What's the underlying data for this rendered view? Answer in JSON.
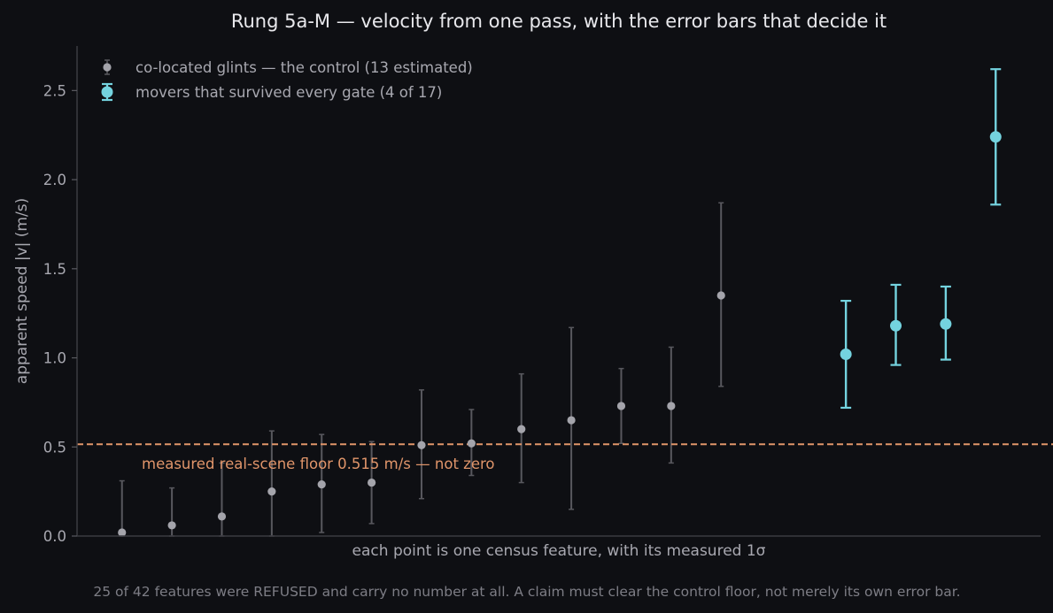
{
  "chart_data": {
    "type": "scatter",
    "title": "Rung 5a-M — velocity from one pass, with the error bars that decide it",
    "xlabel": "each point is one census feature, with its measured 1σ",
    "ylabel": "apparent speed  |v|  (m/s)",
    "footnote": "25 of 42 features were REFUSED and carry no number at all.  A claim must clear the control floor, not merely its own error bar.",
    "xlim": [
      0.1,
      19.4
    ],
    "ylim": [
      0,
      2.75
    ],
    "yticks": [
      0.0,
      0.5,
      1.0,
      1.5,
      2.0,
      2.5
    ],
    "ytick_labels": [
      "0.0",
      "0.5",
      "1.0",
      "1.5",
      "2.0",
      "2.5"
    ],
    "grid": false,
    "legend_position": "top-left",
    "floor": {
      "value": 0.515,
      "label": "measured real-scene floor 0.515 m/s — not zero",
      "color": "#e0956a"
    },
    "series": [
      {
        "name": "co-located glints — the control (13 estimated)",
        "color": "#a4a4ab",
        "errcolor": "#58585e",
        "x": [
          1,
          2,
          3,
          4,
          5,
          6,
          7,
          8,
          9,
          10,
          11,
          12,
          13
        ],
        "y": [
          0.02,
          0.06,
          0.11,
          0.25,
          0.29,
          0.3,
          0.51,
          0.52,
          0.6,
          0.65,
          0.73,
          0.73,
          1.35
        ],
        "yerr_low": [
          0.0,
          0.0,
          0.0,
          0.0,
          0.02,
          0.07,
          0.21,
          0.34,
          0.3,
          0.15,
          0.52,
          0.41,
          0.84
        ],
        "yerr_high": [
          0.31,
          0.27,
          0.41,
          0.59,
          0.57,
          0.53,
          0.82,
          0.71,
          0.91,
          1.17,
          0.94,
          1.06,
          1.87
        ]
      },
      {
        "name": "movers that survived every gate (4 of 17)",
        "color": "#74d3df",
        "errcolor": "#74d3df",
        "x": [
          15.5,
          16.5,
          17.5,
          18.5
        ],
        "y": [
          1.02,
          1.18,
          1.19,
          2.24
        ],
        "yerr_low": [
          0.72,
          0.96,
          0.99,
          1.86
        ],
        "yerr_high": [
          1.32,
          1.41,
          1.4,
          2.62
        ]
      }
    ]
  }
}
